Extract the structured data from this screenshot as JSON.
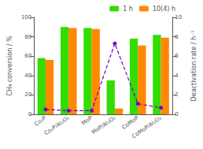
{
  "chart_data": {
    "type": "bar",
    "categories": [
      "Co₂P",
      "Co₂P/Al₂O₃",
      "MoP",
      "MoP/Al₂O₃",
      "CoMoP",
      "CoMoP/Al₂O₃"
    ],
    "ylabel": "CH₄ conversion / %",
    "y2label": "Deactivation rate / h⁻¹",
    "ylim": [
      0,
      100
    ],
    "yticks": [
      0,
      20,
      40,
      60,
      80,
      100
    ],
    "y2lim": [
      0,
      10
    ],
    "y2ticks": [
      0,
      2,
      4,
      6,
      8,
      10
    ],
    "grid": false,
    "legend": "upper right",
    "series": [
      {
        "name": "1 h",
        "color": "#33dd00",
        "values": [
          58,
          90,
          89,
          35,
          78,
          82
        ]
      },
      {
        "name": "10(4) h",
        "color": "#ff8800",
        "values": [
          56,
          89,
          88,
          6,
          71,
          79
        ]
      },
      {
        "type": "line",
        "axis": "y2",
        "color": "#7700cc",
        "line_style": "dashed",
        "marker": "circle",
        "values": [
          0.5,
          0.38,
          0.38,
          7.3,
          1.1,
          0.68
        ]
      }
    ]
  }
}
